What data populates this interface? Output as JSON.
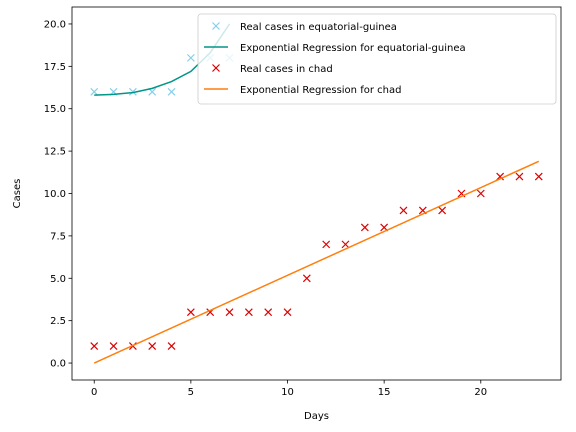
{
  "chart_data": {
    "type": "line",
    "xlabel": "Days",
    "ylabel": "Cases",
    "xlim": [
      -1.15,
      24.15
    ],
    "ylim": [
      -1.0,
      21.0
    ],
    "xticks": [
      0,
      5,
      10,
      15,
      20
    ],
    "xtick_labels": [
      "0",
      "5",
      "10",
      "15",
      "20"
    ],
    "yticks": [
      0.0,
      2.5,
      5.0,
      7.5,
      10.0,
      12.5,
      15.0,
      17.5,
      20.0
    ],
    "ytick_labels": [
      "0.0",
      "2.5",
      "5.0",
      "7.5",
      "10.0",
      "12.5",
      "15.0",
      "17.5",
      "20.0"
    ],
    "grid": false,
    "legend_position": "top-right",
    "series": [
      {
        "name": "Real cases in equatorial-guinea",
        "kind": "markers",
        "marker": "x",
        "color": "#87ceeb",
        "x": [
          0,
          1,
          2,
          3,
          4,
          5,
          6,
          7
        ],
        "y": [
          16,
          16,
          16,
          16,
          16,
          18,
          18,
          18
        ]
      },
      {
        "name": "Exponential Regression for equatorial-guinea",
        "kind": "line",
        "color": "#009688",
        "x": [
          0,
          1,
          2,
          3,
          4,
          5,
          6,
          7
        ],
        "y": [
          15.8,
          15.85,
          15.95,
          16.2,
          16.6,
          17.2,
          18.3,
          20.0
        ]
      },
      {
        "name": "Real cases in chad",
        "kind": "markers",
        "marker": "x",
        "color": "#dd0000",
        "x": [
          0,
          1,
          2,
          3,
          4,
          5,
          6,
          7,
          8,
          9,
          10,
          11,
          12,
          13,
          14,
          15,
          16,
          17,
          18,
          19,
          20,
          21,
          22,
          23
        ],
        "y": [
          1,
          1,
          1,
          1,
          1,
          3,
          3,
          3,
          3,
          3,
          3,
          5,
          7,
          7,
          8,
          8,
          9,
          9,
          9,
          10,
          10,
          11,
          11,
          11
        ]
      },
      {
        "name": "Exponential Regression for chad",
        "kind": "line",
        "color": "#ff7f0e",
        "x": [
          0,
          23
        ],
        "y": [
          0.0,
          11.9
        ]
      }
    ]
  }
}
